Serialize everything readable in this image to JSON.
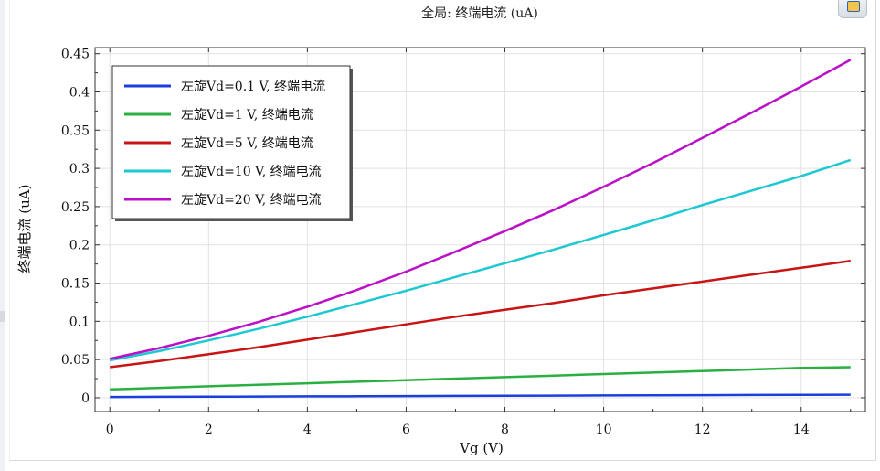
{
  "chart_data": {
    "type": "line",
    "title": "全局: 终端电流 (uA)",
    "xlabel": "Vg (V)",
    "ylabel": "终端电流 (uA)",
    "xlim": [
      -0.3,
      15.3
    ],
    "ylim": [
      -0.018,
      0.458
    ],
    "xticks": [
      0,
      2,
      4,
      6,
      8,
      10,
      12,
      14
    ],
    "yticks": [
      0,
      0.05,
      0.1,
      0.15,
      0.2,
      0.25,
      0.3,
      0.35,
      0.4,
      0.45
    ],
    "xtick_labels": [
      "0",
      "2",
      "4",
      "6",
      "8",
      "10",
      "12",
      "14"
    ],
    "ytick_labels": [
      "0",
      "0.05",
      "0.1",
      "0.15",
      "0.2",
      "0.25",
      "0.3",
      "0.35",
      "0.4",
      "0.45"
    ],
    "grid": true,
    "legend_position": "top-left",
    "x": [
      0,
      1,
      2,
      3,
      4,
      5,
      6,
      7,
      8,
      9,
      10,
      11,
      12,
      13,
      14,
      15
    ],
    "series": [
      {
        "name": "左旋Vd=0.1 V, 终端电流",
        "color": "#1a3fdc",
        "values": [
          0.001,
          0.0012,
          0.0014,
          0.0016,
          0.0018,
          0.002,
          0.0022,
          0.0024,
          0.0026,
          0.0028,
          0.003,
          0.0032,
          0.0034,
          0.0036,
          0.0038,
          0.004
        ]
      },
      {
        "name": "左旋Vd=1 V, 终端电流",
        "color": "#2ab040",
        "values": [
          0.011,
          0.013,
          0.015,
          0.017,
          0.019,
          0.021,
          0.023,
          0.025,
          0.027,
          0.029,
          0.031,
          0.033,
          0.035,
          0.037,
          0.039,
          0.04
        ]
      },
      {
        "name": "左旋Vd=5 V, 终端电流",
        "color": "#c81414",
        "values": [
          0.04,
          0.048,
          0.057,
          0.066,
          0.076,
          0.086,
          0.096,
          0.106,
          0.115,
          0.124,
          0.134,
          0.143,
          0.152,
          0.161,
          0.17,
          0.179
        ]
      },
      {
        "name": "左旋Vd=10 V, 终端电流",
        "color": "#1ec8d2",
        "values": [
          0.049,
          0.061,
          0.075,
          0.09,
          0.106,
          0.123,
          0.14,
          0.158,
          0.176,
          0.194,
          0.213,
          0.232,
          0.252,
          0.271,
          0.29,
          0.311
        ]
      },
      {
        "name": "左旋Vd=20 V, 终端电流",
        "color": "#bb10c8",
        "values": [
          0.051,
          0.065,
          0.081,
          0.099,
          0.119,
          0.141,
          0.165,
          0.191,
          0.218,
          0.246,
          0.276,
          0.307,
          0.34,
          0.373,
          0.407,
          0.442
        ]
      }
    ]
  }
}
